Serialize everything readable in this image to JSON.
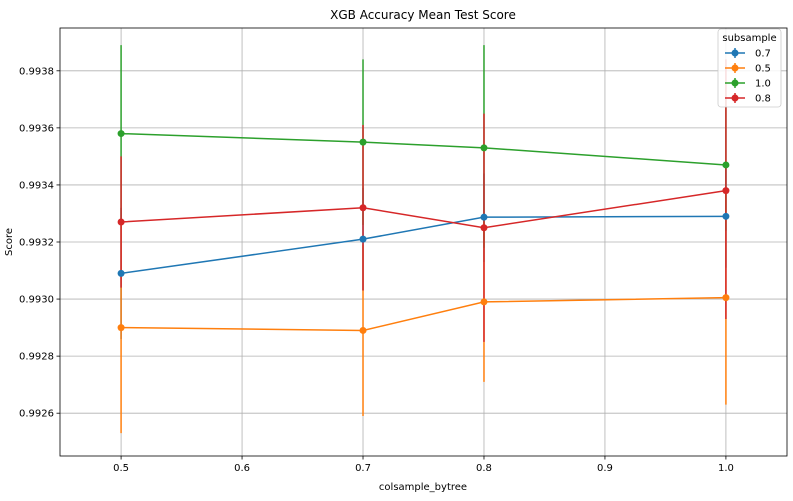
{
  "chart_data": {
    "type": "line",
    "title": "XGB Accuracy Mean Test Score",
    "xlabel": "colsample_bytree",
    "ylabel": "Score",
    "x": [
      0.5,
      0.7,
      0.8,
      1.0
    ],
    "xlim": [
      0.4495,
      1.0505
    ],
    "ylim": [
      0.99245,
      0.99395
    ],
    "x_ticks": [
      0.5,
      0.6,
      0.7,
      0.8,
      0.9,
      1.0
    ],
    "x_tick_labels": [
      "0.5",
      "0.6",
      "0.7",
      "0.8",
      "0.9",
      "1.0"
    ],
    "y_ticks": [
      0.9926,
      0.9928,
      0.993,
      0.9932,
      0.9934,
      0.9936,
      0.9938
    ],
    "y_tick_labels": [
      "0.9926",
      "0.9928",
      "0.9930",
      "0.9932",
      "0.9934",
      "0.9936",
      "0.9938"
    ],
    "grid": true,
    "legend_title": "subsample",
    "legend_position": "top-right",
    "series": [
      {
        "name": "0.7",
        "color": "#1f77b4",
        "values": [
          0.99309,
          0.99321,
          0.993287,
          0.99329
        ],
        "err_low": [
          0.99286,
          0.99303,
          0.99313,
          0.99311
        ],
        "err_high": [
          0.99332,
          0.99339,
          0.99344,
          0.99347
        ]
      },
      {
        "name": "0.5",
        "color": "#ff7f0e",
        "values": [
          0.9929,
          0.99289,
          0.99299,
          0.993005
        ],
        "err_low": [
          0.99253,
          0.99259,
          0.99271,
          0.99263
        ],
        "err_high": [
          0.99327,
          0.99319,
          0.99327,
          0.99338
        ]
      },
      {
        "name": "1.0",
        "color": "#2ca02c",
        "values": [
          0.99358,
          0.99355,
          0.99353,
          0.99347
        ],
        "err_low": [
          0.99328,
          0.99326,
          0.99318,
          0.99324
        ],
        "err_high": [
          0.99389,
          0.99384,
          0.99389,
          0.9937
        ]
      },
      {
        "name": "0.8",
        "color": "#d62728",
        "values": [
          0.99327,
          0.99332,
          0.99325,
          0.99338
        ],
        "err_low": [
          0.99304,
          0.99303,
          0.99285,
          0.99293
        ],
        "err_high": [
          0.9935,
          0.99361,
          0.99365,
          0.99384
        ]
      }
    ]
  }
}
